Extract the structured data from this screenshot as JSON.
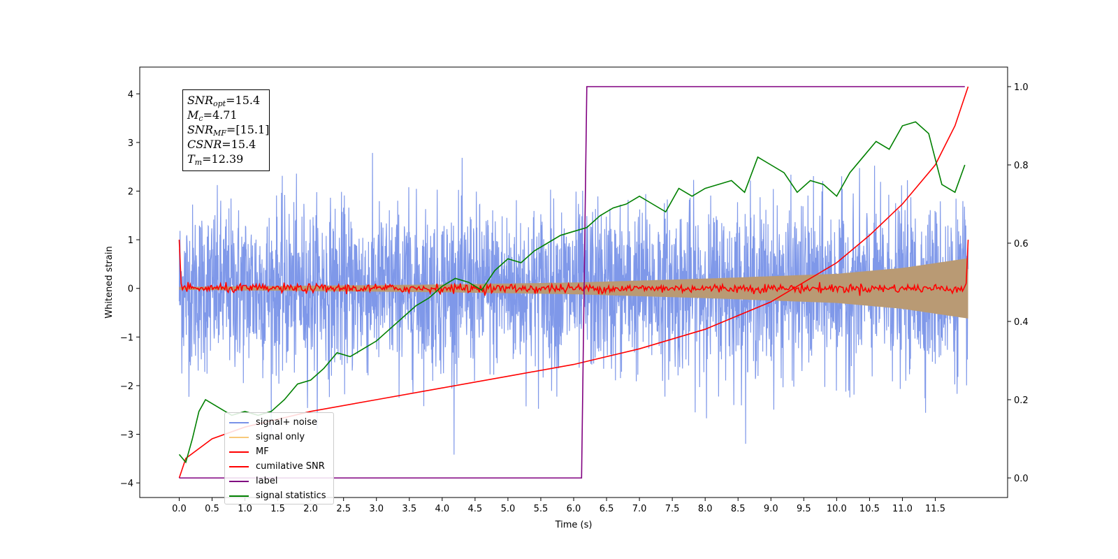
{
  "chart_data": {
    "type": "line",
    "xlabel": "Time (s)",
    "ylabel": "Whitened strain",
    "xlim": [
      -0.6,
      12.6
    ],
    "ylim_left": [
      -4.3,
      4.55
    ],
    "ylim_right": [
      -0.05,
      1.05
    ],
    "x_ticks": [
      "0.0",
      "0.5",
      "1.0",
      "1.5",
      "2.0",
      "2.5",
      "3.0",
      "3.5",
      "4.0",
      "4.5",
      "5.0",
      "5.5",
      "6.0",
      "6.5",
      "7.0",
      "7.5",
      "8.0",
      "8.5",
      "9.0",
      "9.5",
      "10.0",
      "10.5",
      "11.0",
      "11.5"
    ],
    "y_left_ticks": [
      "4",
      "3",
      "2",
      "1",
      "0",
      "−1",
      "−2",
      "−3",
      "−4"
    ],
    "y_right_ticks": [
      "1.0",
      "0.8",
      "0.6",
      "0.4",
      "0.2",
      "0.0"
    ],
    "grid": false,
    "legend_position": "lower-left",
    "series": [
      {
        "name": "signal+ noise",
        "color": "#7892e8",
        "axis": "left",
        "description_values": {
          "x_start": 0.0,
          "x_end": 12.0,
          "noise_std": 0.85,
          "peaks": [
            4.15,
            -3.9
          ]
        }
      },
      {
        "name": "signal only",
        "color": "#f7c97a",
        "axis": "left",
        "envelope": {
          "x": [
            0.0,
            4.0,
            6.0,
            8.0,
            10.0,
            11.0,
            12.0
          ],
          "amplitude": [
            0.03,
            0.08,
            0.12,
            0.2,
            0.3,
            0.42,
            0.62
          ]
        }
      },
      {
        "name": "MF",
        "color": "#ff0000",
        "axis": "left",
        "points": {
          "x": [
            0.0,
            0.02,
            0.05,
            6.0,
            11.95,
            12.0
          ],
          "y": [
            1.0,
            0.3,
            0.05,
            0.0,
            0.05,
            1.0
          ]
        }
      },
      {
        "name": "cumilative SNR",
        "color": "#ff0000",
        "axis": "right",
        "points": {
          "x": [
            0.0,
            0.1,
            0.5,
            1.0,
            2.0,
            3.0,
            4.0,
            5.0,
            6.0,
            7.0,
            8.0,
            9.0,
            10.0,
            10.5,
            11.0,
            11.5,
            11.8,
            12.0
          ],
          "y": [
            0.0,
            0.05,
            0.1,
            0.13,
            0.17,
            0.2,
            0.23,
            0.26,
            0.29,
            0.33,
            0.38,
            0.45,
            0.55,
            0.62,
            0.7,
            0.8,
            0.9,
            1.0
          ]
        }
      },
      {
        "name": "label",
        "color": "#800080",
        "axis": "right",
        "points": {
          "x": [
            0.0,
            6.12,
            6.2,
            11.95
          ],
          "y": [
            0.0,
            0.0,
            1.0,
            1.0
          ]
        }
      },
      {
        "name": "signal statistics",
        "color": "#008000",
        "axis": "right",
        "points": {
          "x": [
            0.0,
            0.1,
            0.2,
            0.3,
            0.4,
            0.6,
            0.8,
            1.0,
            1.2,
            1.4,
            1.6,
            1.8,
            2.0,
            2.2,
            2.4,
            2.6,
            2.8,
            3.0,
            3.2,
            3.4,
            3.6,
            3.8,
            4.0,
            4.2,
            4.4,
            4.6,
            4.8,
            5.0,
            5.2,
            5.4,
            5.6,
            5.8,
            6.0,
            6.2,
            6.4,
            6.6,
            6.8,
            7.0,
            7.2,
            7.4,
            7.6,
            7.8,
            8.0,
            8.2,
            8.4,
            8.6,
            8.8,
            9.0,
            9.2,
            9.4,
            9.6,
            9.8,
            10.0,
            10.2,
            10.4,
            10.6,
            10.8,
            11.0,
            11.2,
            11.4,
            11.6,
            11.8,
            11.95
          ],
          "y": [
            0.06,
            0.04,
            0.1,
            0.17,
            0.2,
            0.18,
            0.16,
            0.17,
            0.16,
            0.17,
            0.2,
            0.24,
            0.25,
            0.28,
            0.32,
            0.31,
            0.33,
            0.35,
            0.38,
            0.41,
            0.44,
            0.46,
            0.49,
            0.51,
            0.5,
            0.48,
            0.53,
            0.56,
            0.55,
            0.58,
            0.6,
            0.62,
            0.63,
            0.64,
            0.67,
            0.69,
            0.7,
            0.72,
            0.7,
            0.68,
            0.74,
            0.72,
            0.74,
            0.75,
            0.76,
            0.73,
            0.82,
            0.8,
            0.78,
            0.73,
            0.76,
            0.75,
            0.72,
            0.78,
            0.82,
            0.86,
            0.84,
            0.9,
            0.91,
            0.88,
            0.75,
            0.73,
            0.8
          ]
        }
      }
    ]
  },
  "info_box": {
    "line1_var": "SNR",
    "line1_sub": "opt",
    "line1_val": "=15.4",
    "line2_var": "M",
    "line2_sub": "c",
    "line2_val": "=4.71",
    "line3_var": "SNR",
    "line3_sub": "MF",
    "line3_val": "=[15.1]",
    "line4_var": "CSNR",
    "line4_val": "=15.4",
    "line5_var": "T",
    "line5_sub": "m",
    "line5_val": "=12.39"
  },
  "legend": {
    "items": [
      {
        "label": "signal+ noise",
        "color": "#7892e8"
      },
      {
        "label": "signal only",
        "color": "#f7c97a"
      },
      {
        "label": "MF",
        "color": "#ff0000"
      },
      {
        "label": "cumilative SNR",
        "color": "#ff0000"
      },
      {
        "label": "label",
        "color": "#800080"
      },
      {
        "label": "signal statistics",
        "color": "#008000"
      }
    ]
  }
}
